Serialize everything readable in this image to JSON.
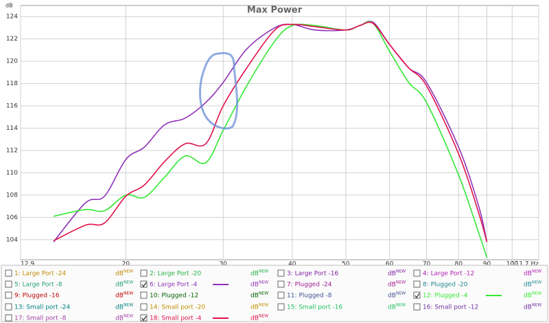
{
  "chart_data": {
    "type": "line",
    "title": "Max Power",
    "y_label": "dB",
    "log_x": true,
    "grid": true,
    "x": [
      14.8,
      16.9,
      18.3,
      20,
      21.6,
      23.5,
      25.6,
      27.9,
      30,
      33.1,
      37.2,
      40,
      44,
      50,
      53,
      56,
      60,
      65,
      70,
      80,
      87,
      90
    ],
    "series": [
      {
        "name": "6: Large Port -4",
        "color": "#9030b8",
        "values": [
          103.8,
          107.3,
          107.9,
          111.2,
          112.3,
          114.3,
          114.9,
          116.3,
          118.1,
          121.1,
          123.0,
          123.3,
          122.8,
          122.8,
          123.2,
          123.5,
          121.5,
          119.4,
          118.1,
          112.3,
          107.0,
          103.8
        ]
      },
      {
        "name": "12: Plugged -4",
        "color": "#33e833",
        "values": [
          106.1,
          106.7,
          106.6,
          108.0,
          107.8,
          109.6,
          111.5,
          110.9,
          113.8,
          117.8,
          121.8,
          123.2,
          123.2,
          122.8,
          123.2,
          123.4,
          120.9,
          118.1,
          116.3,
          109.8,
          104.6,
          102.4
        ]
      },
      {
        "name": "18: Small port -4",
        "color": "#e0104a",
        "values": [
          103.9,
          105.3,
          105.5,
          107.9,
          108.9,
          111.0,
          112.6,
          112.6,
          116.0,
          119.4,
          122.8,
          123.3,
          123.1,
          122.8,
          123.2,
          123.4,
          121.5,
          119.4,
          117.8,
          111.7,
          106.4,
          103.8
        ]
      }
    ],
    "xlim": [
      12.9,
      111.7
    ],
    "xticks": [
      12.9,
      20,
      30,
      40,
      50,
      60,
      70,
      80,
      90,
      100,
      {
        "value": 111.7,
        "label": "111.7 Hz"
      }
    ],
    "ylim": [
      102.2,
      125.0
    ],
    "yticks": [
      104,
      106,
      108,
      110,
      112,
      114,
      116,
      118,
      120,
      122,
      124
    ]
  },
  "legend_panel": {
    "unit_label": "dB",
    "badge": "NEW",
    "entries": [
      {
        "label": "1: Large Port -24",
        "color": "#c08a00"
      },
      {
        "label": "2: Large Port -20",
        "color": "#20b040"
      },
      {
        "label": "3: Large Port -16",
        "color": "#8020a0"
      },
      {
        "label": "4: Large Port -12",
        "color": "#b020b0"
      },
      {
        "label": "5: Large Port -8",
        "color": "#20a070"
      },
      {
        "label": "7: Plugged -24",
        "color": "#a02090"
      },
      {
        "label": "8: Plugged -20",
        "color": "#208890"
      },
      {
        "label": "9: Plugged -16",
        "color": "#c00000"
      },
      {
        "label": "10: Plugged -12",
        "color": "#006000"
      },
      {
        "label": "11: Plugged -8",
        "color": "#405090"
      },
      {
        "label": "13: Small port -24",
        "color": "#008080"
      },
      {
        "label": "14: Small port -20",
        "color": "#c09000"
      },
      {
        "label": "15: Small port -16",
        "color": "#20c060"
      },
      {
        "label": "16: Small port -12",
        "color": "#7030a0"
      },
      {
        "label": "17: Small port -8",
        "color": "#a040a0"
      }
    ]
  }
}
